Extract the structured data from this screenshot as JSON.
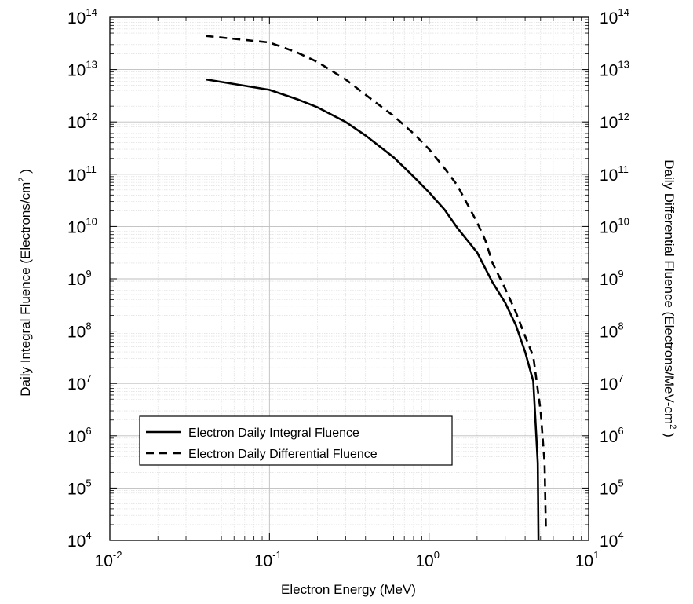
{
  "chart_data": {
    "type": "line",
    "title": "",
    "xlabel": "Electron Energy (MeV)",
    "ylabel_left": "Daily Integral Fluence (Electrons/cm",
    "ylabel_left_sup": "2",
    "ylabel_left_end": " )",
    "ylabel_right": "Daily Differential Fluence (Electrons/MeV-cm",
    "ylabel_right_sup": "2",
    "ylabel_right_end": " )",
    "x_scale": "log",
    "y_scale": "log",
    "xlim": [
      0.01,
      10
    ],
    "ylim": [
      10000.0,
      100000000000000.0
    ],
    "grid": true,
    "legend_position": "lower-left",
    "x_ticks": [
      {
        "base": "10",
        "exp": "-2"
      },
      {
        "base": "10",
        "exp": "-1"
      },
      {
        "base": "10",
        "exp": "0"
      },
      {
        "base": "10",
        "exp": "1"
      }
    ],
    "y_ticks": [
      {
        "base": "10",
        "exp": "4"
      },
      {
        "base": "10",
        "exp": "5"
      },
      {
        "base": "10",
        "exp": "6"
      },
      {
        "base": "10",
        "exp": "7"
      },
      {
        "base": "10",
        "exp": "8"
      },
      {
        "base": "10",
        "exp": "9"
      },
      {
        "base": "10",
        "exp": "10"
      },
      {
        "base": "10",
        "exp": "11"
      },
      {
        "base": "10",
        "exp": "12"
      },
      {
        "base": "10",
        "exp": "13"
      },
      {
        "base": "10",
        "exp": "14"
      }
    ],
    "series": [
      {
        "name": "Electron Daily Integral Fluence",
        "style": "solid",
        "color": "#000000",
        "x": [
          0.04,
          0.1,
          0.15,
          0.2,
          0.3,
          0.4,
          0.6,
          0.8,
          1.0,
          1.25,
          1.5,
          2.0,
          2.5,
          3.0,
          3.5,
          4.0,
          4.5,
          4.8,
          4.85
        ],
        "y": [
          6500000000000.0,
          4100000000000.0,
          2700000000000.0,
          1900000000000.0,
          1000000000000.0,
          550000000000.0,
          210000000000.0,
          90000000000.0,
          45000000000.0,
          21000000000.0,
          9500000000.0,
          3200000000.0,
          850000000.0,
          350000000.0,
          130000000.0,
          40000000.0,
          11000000.0,
          300000.0,
          10000.0
        ]
      },
      {
        "name": "Electron Daily Differential Fluence",
        "style": "dashed",
        "color": "#000000",
        "x": [
          0.04,
          0.1,
          0.15,
          0.2,
          0.3,
          0.4,
          0.6,
          0.8,
          1.0,
          1.25,
          1.5,
          2.0,
          2.25,
          2.5,
          3.0,
          3.5,
          4.0,
          4.5,
          5.0,
          5.3,
          5.4
        ],
        "y": [
          44000000000000.0,
          33000000000000.0,
          21000000000000.0,
          14000000000000.0,
          6500000000000.0,
          3300000000000.0,
          1300000000000.0,
          600000000000.0,
          300000000000.0,
          130000000000.0,
          62000000000.0,
          12000000000.0,
          5500000000.0,
          2000000000.0,
          650000000.0,
          230000000.0,
          80000000.0,
          33000000.0,
          3000000.0,
          300000.0,
          15000.0
        ]
      }
    ]
  }
}
